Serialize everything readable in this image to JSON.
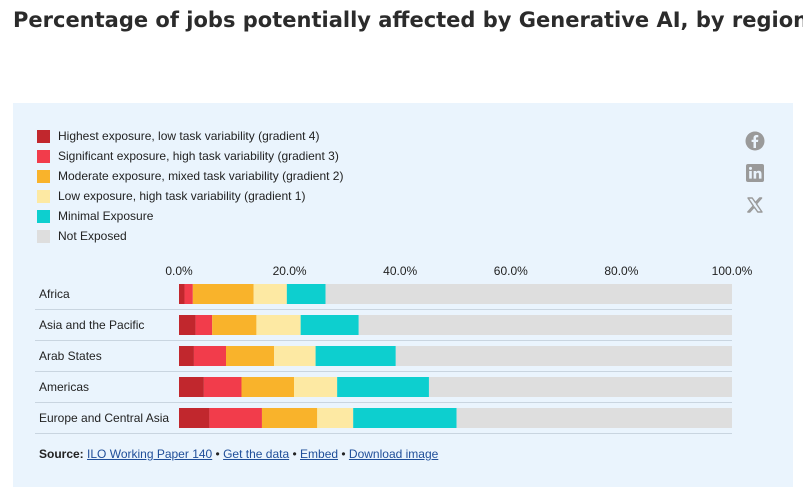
{
  "page_title": "Percentage of jobs potentially affected by Generative AI, by region",
  "icons": [
    "facebook-icon",
    "linkedin-icon",
    "x-icon"
  ],
  "source": {
    "label": "Source:",
    "link_paper": "ILO Working Paper 140",
    "sep1": " • ",
    "link_data": "Get the data",
    "sep2": " • ",
    "link_embed": "Embed",
    "sep3": "  • ",
    "link_download": "Download image"
  },
  "chart_data": {
    "type": "bar",
    "orientation": "horizontal",
    "stacked": true,
    "title": "Percentage of jobs potentially affected by Generative AI, by region",
    "xlabel": "",
    "ylabel": "",
    "xlim": [
      0,
      100
    ],
    "x_ticks": [
      "0.0%",
      "20.0%",
      "40.0%",
      "60.0%",
      "80.0%",
      "100.0%"
    ],
    "legend_position": "top-left",
    "grid": false,
    "categories": [
      "Africa",
      "Asia and the Pacific",
      "Arab States",
      "Americas",
      "Europe and Central Asia"
    ],
    "series": [
      {
        "name": "Highest exposure, low task variability (gradient 4)",
        "color": "#c1272d",
        "values": [
          1.0,
          3.0,
          2.7,
          4.5,
          5.5
        ]
      },
      {
        "name": "Significant exposure, high task variability (gradient 3)",
        "color": "#f23c4b",
        "values": [
          1.5,
          3.0,
          5.8,
          6.8,
          9.5
        ]
      },
      {
        "name": "Moderate exposure, mixed task variability (gradient 2)",
        "color": "#f9b32b",
        "values": [
          11.0,
          8.0,
          8.7,
          9.5,
          10.0
        ]
      },
      {
        "name": "Low exposure, high task variability (gradient 1)",
        "color": "#fde9a3",
        "values": [
          6.0,
          8.0,
          7.5,
          7.8,
          6.5
        ]
      },
      {
        "name": "Minimal Exposure",
        "color": "#0dcfcf",
        "values": [
          7.0,
          10.5,
          14.5,
          16.6,
          18.7
        ]
      },
      {
        "name": "Not Exposed",
        "color": "#dedede",
        "values": [
          73.5,
          67.5,
          60.8,
          54.8,
          49.8
        ]
      }
    ]
  }
}
